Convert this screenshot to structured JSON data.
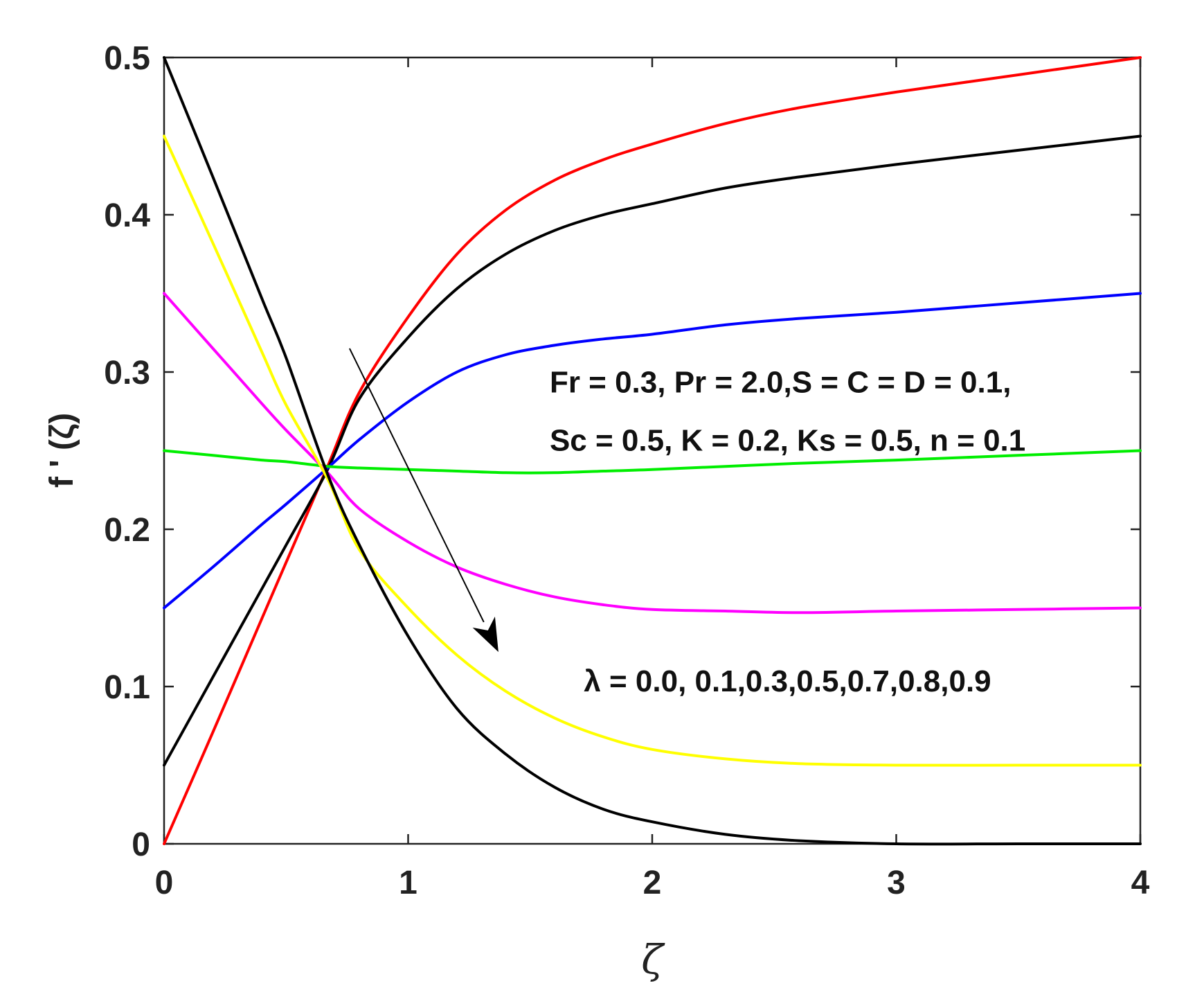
{
  "chart_data": {
    "type": "line",
    "title": "",
    "xlabel": "ζ",
    "ylabel": "f ' (ζ)",
    "xlim": [
      0,
      4
    ],
    "ylim": [
      0,
      0.5
    ],
    "xticks": [
      0,
      1,
      2,
      3,
      4
    ],
    "yticks": [
      0,
      0.1,
      0.2,
      0.3,
      0.4,
      0.5
    ],
    "xtick_labels": [
      "0",
      "1",
      "2",
      "3",
      "4"
    ],
    "ytick_labels": [
      "0",
      "0.1",
      "0.2",
      "0.3",
      "0.4",
      "0.5"
    ],
    "grid": false,
    "legend": "none",
    "x": [
      0,
      0.2,
      0.4,
      0.5,
      0.67,
      0.8,
      1.0,
      1.2,
      1.4,
      1.6,
      1.8,
      2.0,
      2.3,
      2.6,
      3.0,
      3.5,
      4.0
    ],
    "series": [
      {
        "color": "#ff0000",
        "values": [
          0.0,
          0.071,
          0.143,
          0.179,
          0.24,
          0.287,
          0.335,
          0.375,
          0.403,
          0.422,
          0.435,
          0.445,
          0.458,
          0.468,
          0.478,
          0.489,
          0.5
        ]
      },
      {
        "color": "#000000",
        "values": [
          0.05,
          0.106,
          0.162,
          0.19,
          0.238,
          0.283,
          0.322,
          0.353,
          0.375,
          0.39,
          0.4,
          0.407,
          0.417,
          0.424,
          0.432,
          0.441,
          0.45
        ]
      },
      {
        "color": "#0000ff",
        "values": [
          0.15,
          0.176,
          0.203,
          0.216,
          0.239,
          0.257,
          0.281,
          0.3,
          0.311,
          0.317,
          0.321,
          0.324,
          0.33,
          0.334,
          0.338,
          0.344,
          0.35
        ]
      },
      {
        "color": "#00ee00",
        "values": [
          0.25,
          0.247,
          0.244,
          0.243,
          0.24,
          0.239,
          0.238,
          0.237,
          0.236,
          0.236,
          0.237,
          0.238,
          0.24,
          0.242,
          0.244,
          0.247,
          0.25
        ]
      },
      {
        "color": "#ff00ff",
        "values": [
          0.35,
          0.315,
          0.28,
          0.263,
          0.236,
          0.213,
          0.192,
          0.176,
          0.165,
          0.157,
          0.152,
          0.149,
          0.148,
          0.147,
          0.148,
          0.149,
          0.15
        ]
      },
      {
        "color": "#ffff00",
        "values": [
          0.45,
          0.382,
          0.313,
          0.279,
          0.232,
          0.187,
          0.15,
          0.12,
          0.097,
          0.08,
          0.068,
          0.06,
          0.054,
          0.051,
          0.05,
          0.05,
          0.05
        ]
      },
      {
        "color": "#000000",
        "values": [
          0.5,
          0.424,
          0.347,
          0.309,
          0.235,
          0.19,
          0.132,
          0.086,
          0.057,
          0.036,
          0.022,
          0.014,
          0.006,
          0.002,
          0.0,
          0.0,
          0.0
        ]
      }
    ],
    "annotations": [
      {
        "text": "Fr = 0.3, Pr = 2.0,S = C = D = 0.1,",
        "x": 1.58,
        "y": 0.287
      },
      {
        "text": "Sc = 0.5, K = 0.2, Ks = 0.5, n = 0.1",
        "x": 1.58,
        "y": 0.25
      },
      {
        "text": "λ = 0.0, 0.1,0.3,0.5,0.7,0.8,0.9",
        "x": 1.72,
        "y": 0.097
      }
    ],
    "arrow": {
      "from": [
        0.76,
        0.315
      ],
      "to": [
        1.37,
        0.122
      ],
      "color": "#000000"
    }
  }
}
